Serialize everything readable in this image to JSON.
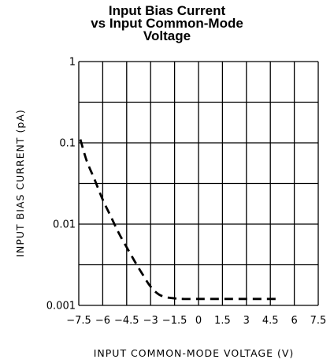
{
  "chart_data": {
    "type": "line",
    "title": [
      "Input Bias Current",
      "vs Input Common-Mode",
      "Voltage"
    ],
    "xlabel": "INPUT COMMON-MODE VOLTAGE (V)",
    "ylabel": "INPUT BIAS CURRENT (pA)",
    "xlim": [
      -7.5,
      7.5
    ],
    "ylim": [
      0.001,
      1
    ],
    "yscale": "log",
    "grid": true,
    "x_ticks": [
      "-7.5",
      "-6",
      "-4.5",
      "-3",
      "-1.5",
      "0",
      "1.5",
      "3",
      "4.5",
      "6",
      "7.5"
    ],
    "y_ticks": [
      "1",
      "0.1",
      "0.01",
      "0.001"
    ],
    "series": [
      {
        "style": "dashed",
        "color": "#000000",
        "x": [
          -7.4,
          -7.0,
          -6.5,
          -6.0,
          -5.5,
          -5.0,
          -4.5,
          -4.0,
          -3.5,
          -3.0,
          -2.5,
          -2.0,
          -1.5,
          -1.0,
          0.0,
          1.0,
          2.0,
          3.0,
          4.0,
          5.0
        ],
        "y": [
          0.11,
          0.06,
          0.035,
          0.02,
          0.0125,
          0.0078,
          0.0052,
          0.0035,
          0.0024,
          0.0017,
          0.00137,
          0.00126,
          0.00122,
          0.0012,
          0.0012,
          0.0012,
          0.0012,
          0.0012,
          0.0012,
          0.0012
        ]
      }
    ]
  }
}
